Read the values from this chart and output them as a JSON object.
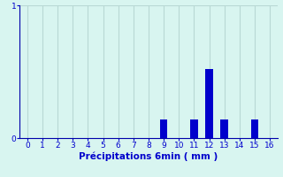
{
  "categories": [
    0,
    1,
    2,
    3,
    4,
    5,
    6,
    7,
    8,
    9,
    10,
    11,
    12,
    13,
    14,
    15,
    16
  ],
  "values": [
    0,
    0,
    0,
    0,
    0,
    0,
    0,
    0,
    0,
    0.14,
    0,
    0.14,
    0.52,
    0.14,
    0,
    0.14,
    0
  ],
  "bar_color": "#0000cc",
  "background_color": "#d8f5f0",
  "grid_color": "#b8d8d4",
  "axis_color": "#0000aa",
  "tick_color": "#0000cc",
  "xlabel": "Précipitations 6min ( mm )",
  "xlabel_fontsize": 7.5,
  "ylim": [
    0,
    1
  ],
  "xlim": [
    -0.5,
    16.5
  ],
  "yticks": [
    0,
    1
  ],
  "xticks": [
    0,
    1,
    2,
    3,
    4,
    5,
    6,
    7,
    8,
    9,
    10,
    11,
    12,
    13,
    14,
    15,
    16
  ],
  "tick_fontsize": 6.5,
  "bar_width": 0.5
}
